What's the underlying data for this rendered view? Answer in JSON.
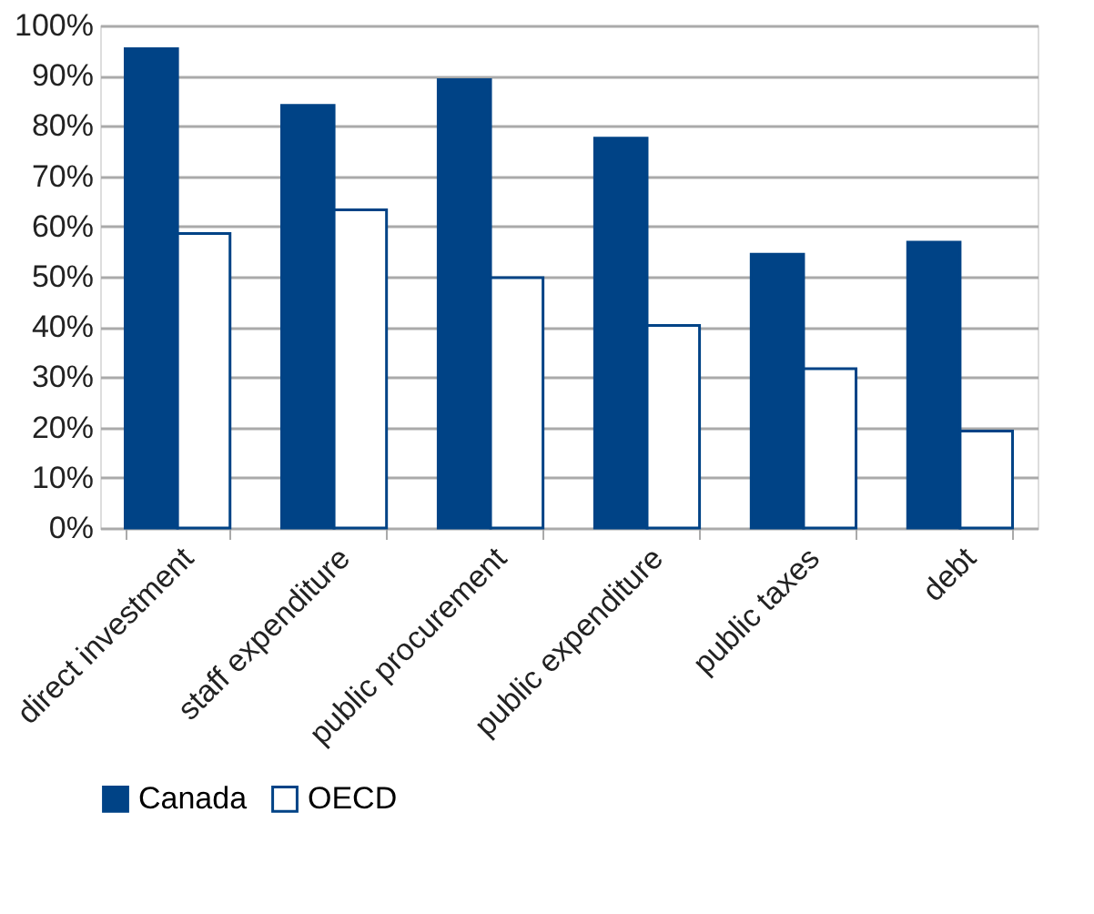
{
  "chart_data": {
    "type": "bar",
    "categories": [
      "direct investment",
      "staff expenditure",
      "public procurement",
      "public expenditure",
      "public taxes",
      "debt"
    ],
    "series": [
      {
        "name": "Canada",
        "color": "#004386",
        "values": [
          95.4,
          84.1,
          89.2,
          77.6,
          54.5,
          56.9
        ]
      },
      {
        "name": "OECD",
        "color": "#ffffff",
        "values": [
          58.6,
          63.3,
          49.8,
          40.3,
          31.7,
          19.3
        ]
      }
    ],
    "ylim": [
      0,
      100
    ],
    "yticks": [
      {
        "value": 0,
        "label": "0%"
      },
      {
        "value": 10,
        "label": "10%"
      },
      {
        "value": 20,
        "label": "20%"
      },
      {
        "value": 30,
        "label": "30%"
      },
      {
        "value": 40,
        "label": "40%"
      },
      {
        "value": 50,
        "label": "50%"
      },
      {
        "value": 60,
        "label": "60%"
      },
      {
        "value": 70,
        "label": "70%"
      },
      {
        "value": 80,
        "label": "80%"
      },
      {
        "value": 90,
        "label": "90%"
      },
      {
        "value": 100,
        "label": "100%"
      }
    ],
    "grid": "y",
    "legend": "bottom"
  }
}
